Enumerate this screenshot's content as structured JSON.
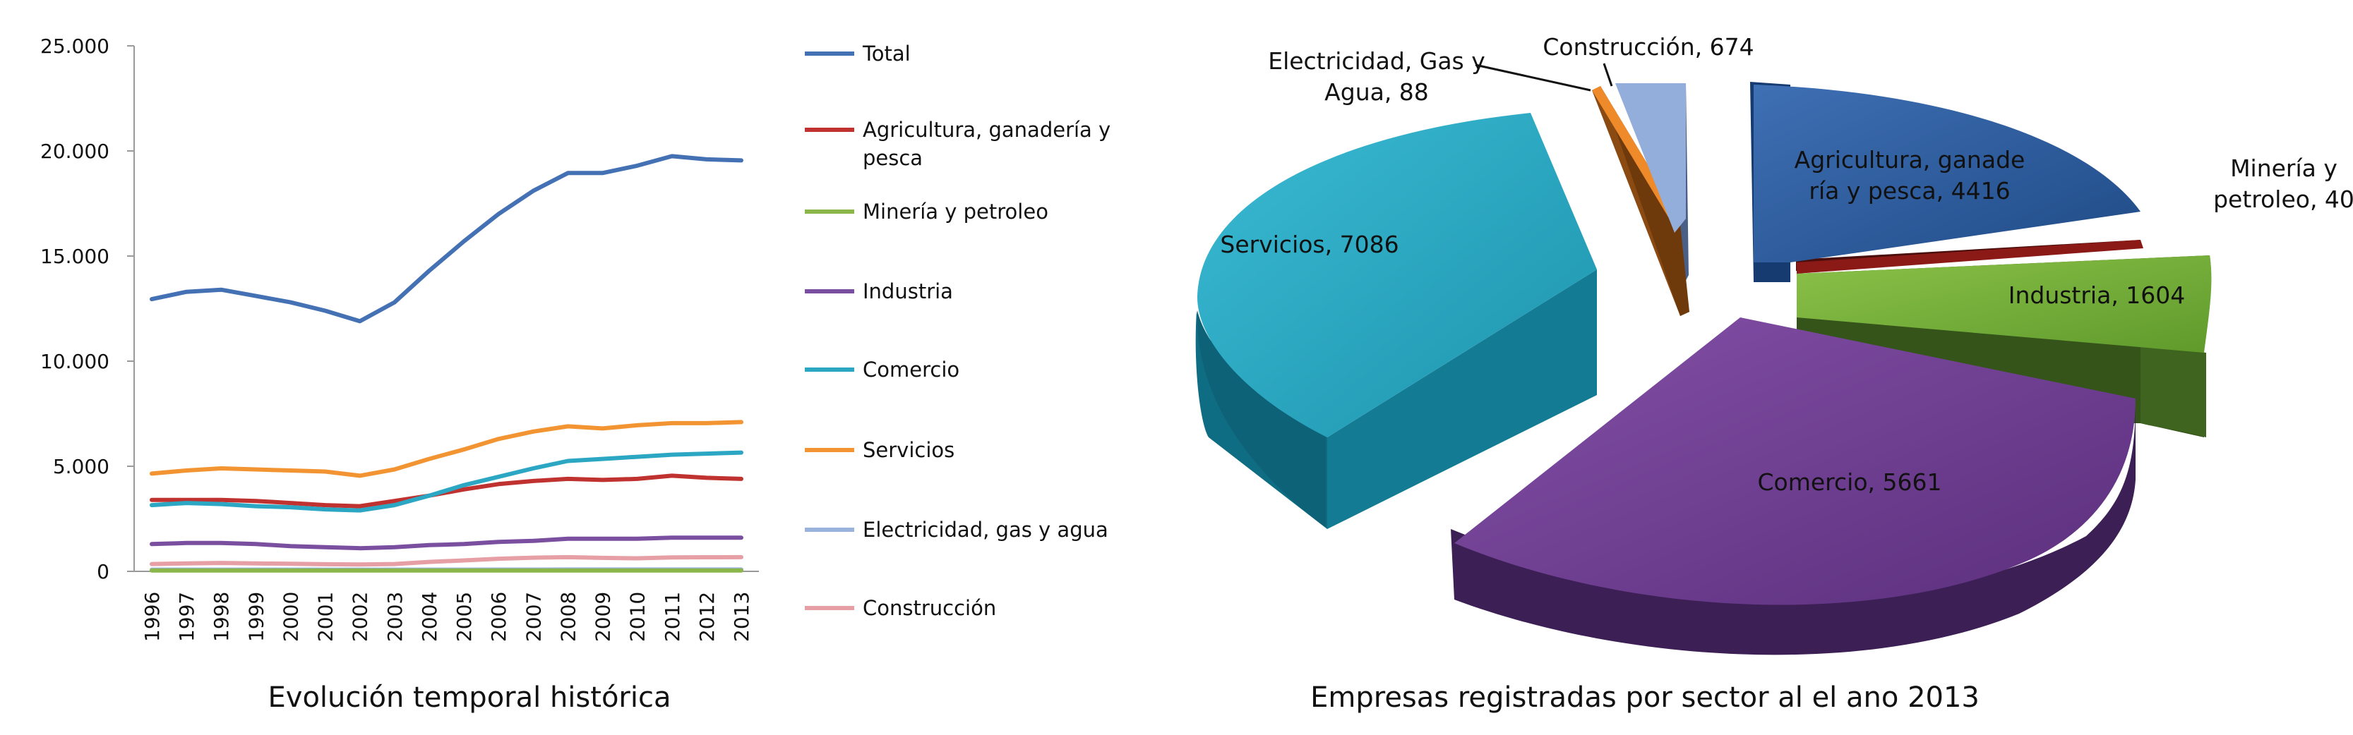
{
  "chart_data": [
    {
      "type": "line",
      "title": "Evolución temporal histórica",
      "x": [
        "1996",
        "1997",
        "1998",
        "1999",
        "2000",
        "2001",
        "2002",
        "2003",
        "2004",
        "2005",
        "2006",
        "2007",
        "2008",
        "2009",
        "2010",
        "2011",
        "2012",
        "2013"
      ],
      "ylim": [
        0,
        25000
      ],
      "yticks": [
        "0",
        "5.000",
        "10.000",
        "15.000",
        "20.000",
        "25.000"
      ],
      "grid": false,
      "legend_position": "right",
      "series": [
        {
          "name": "Total",
          "color": "#4471b4",
          "values": [
            12950,
            13300,
            13400,
            13100,
            12800,
            12400,
            11900,
            12800,
            14300,
            15700,
            17000,
            18100,
            18950,
            18950,
            19300,
            19750,
            19600,
            19550
          ]
        },
        {
          "name": "Agricultura, ganadería y pesca",
          "color": "#c0322f",
          "values": [
            3400,
            3400,
            3400,
            3350,
            3250,
            3150,
            3100,
            3350,
            3600,
            3900,
            4150,
            4300,
            4400,
            4350,
            4400,
            4550,
            4450,
            4400
          ]
        },
        {
          "name": "Minería y petroleo",
          "color": "#8ab64a",
          "values": [
            40,
            40,
            40,
            40,
            40,
            40,
            40,
            40,
            40,
            40,
            40,
            40,
            40,
            40,
            40,
            40,
            40,
            40
          ]
        },
        {
          "name": "Industria",
          "color": "#7a4fa0",
          "values": [
            1300,
            1350,
            1350,
            1300,
            1200,
            1150,
            1100,
            1150,
            1250,
            1300,
            1400,
            1450,
            1550,
            1550,
            1550,
            1600,
            1600,
            1600
          ]
        },
        {
          "name": "Comercio",
          "color": "#2ca7c3",
          "values": [
            3150,
            3250,
            3200,
            3100,
            3050,
            2950,
            2900,
            3150,
            3600,
            4100,
            4500,
            4900,
            5250,
            5350,
            5450,
            5550,
            5600,
            5650
          ]
        },
        {
          "name": "Servicios",
          "color": "#f39433",
          "values": [
            4650,
            4800,
            4900,
            4850,
            4800,
            4750,
            4550,
            4850,
            5350,
            5800,
            6300,
            6650,
            6900,
            6800,
            6950,
            7050,
            7050,
            7100
          ]
        },
        {
          "name": "Electricidad, gas y agua",
          "color": "#9ab3dd",
          "values": [
            80,
            80,
            80,
            80,
            80,
            80,
            80,
            80,
            80,
            80,
            85,
            85,
            88,
            88,
            88,
            88,
            88,
            88
          ]
        },
        {
          "name": "Construcción",
          "color": "#e69fa4",
          "values": [
            350,
            380,
            400,
            380,
            360,
            340,
            330,
            350,
            450,
            520,
            600,
            650,
            674,
            640,
            620,
            660,
            670,
            674
          ]
        }
      ]
    },
    {
      "type": "pie",
      "title": "Empresas registradas por sector al el ano 2013",
      "slices": [
        {
          "name": "Agricultura, ganadería y pesca",
          "value": 4416,
          "label": [
            "Agricultura, ganade",
            "ría y pesca, 4416"
          ],
          "color": "#2e5c9e"
        },
        {
          "name": "Minería y petroleo",
          "value": 40,
          "label": [
            "Minería y",
            "petroleo, 40"
          ],
          "color": "#8b1a17"
        },
        {
          "name": "Industria",
          "value": 1604,
          "label": [
            "Industria, 1604"
          ],
          "color": "#7bb13c"
        },
        {
          "name": "Comercio",
          "value": 5661,
          "label": [
            "Comercio, 5661"
          ],
          "color": "#6f3c91"
        },
        {
          "name": "Servicios",
          "value": 7086,
          "label": [
            "Servicios, 7086"
          ],
          "color": "#27a7c1"
        },
        {
          "name": "Electricidad, Gas y Agua",
          "value": 88,
          "label": [
            "Electricidad, Gas y",
            "Agua, 88"
          ],
          "color": "#e9862a"
        },
        {
          "name": "Construcción",
          "value": 674,
          "label": [
            "Construcción, 674"
          ],
          "color": "#8aa7d6"
        }
      ]
    }
  ]
}
